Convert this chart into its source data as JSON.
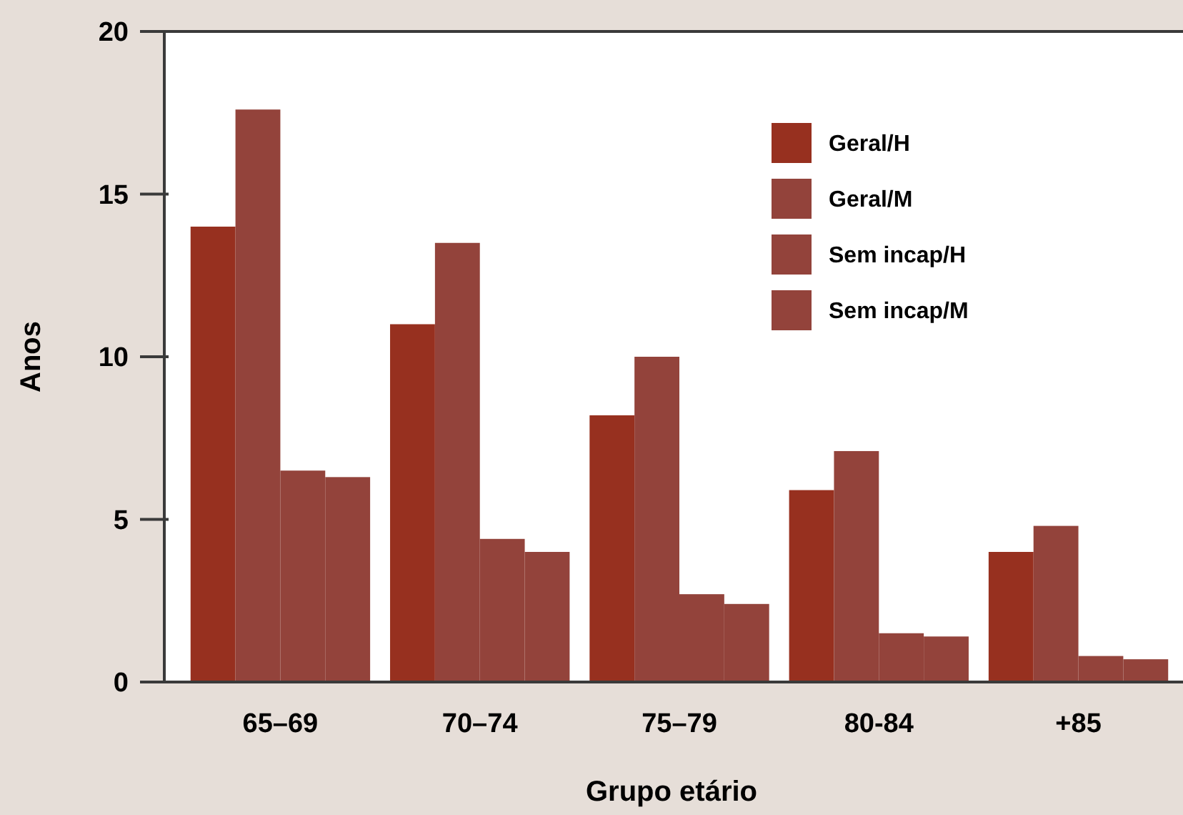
{
  "chart_data": {
    "type": "bar",
    "xlabel": "Grupo etário",
    "ylabel": "Anos",
    "categories": [
      "65–69",
      "70–74",
      "75–79",
      "80-84",
      "+85"
    ],
    "series": [
      {
        "name": "Geral/H",
        "color": "#97301f",
        "values": [
          14.0,
          11.0,
          8.2,
          5.9,
          4.0
        ]
      },
      {
        "name": "Geral/M",
        "color": "#93433b",
        "values": [
          17.6,
          13.5,
          10.0,
          7.1,
          4.8
        ]
      },
      {
        "name": "Sem incap/H",
        "color": "#93433b",
        "values": [
          6.5,
          4.4,
          2.7,
          1.5,
          0.8
        ]
      },
      {
        "name": "Sem incap/M",
        "color": "#93433b",
        "values": [
          6.3,
          4.0,
          2.4,
          1.4,
          0.7
        ]
      }
    ],
    "ylim": [
      0,
      20
    ],
    "yticks": [
      0,
      5,
      10,
      15,
      20
    ],
    "grid": false,
    "legend": "top right"
  }
}
